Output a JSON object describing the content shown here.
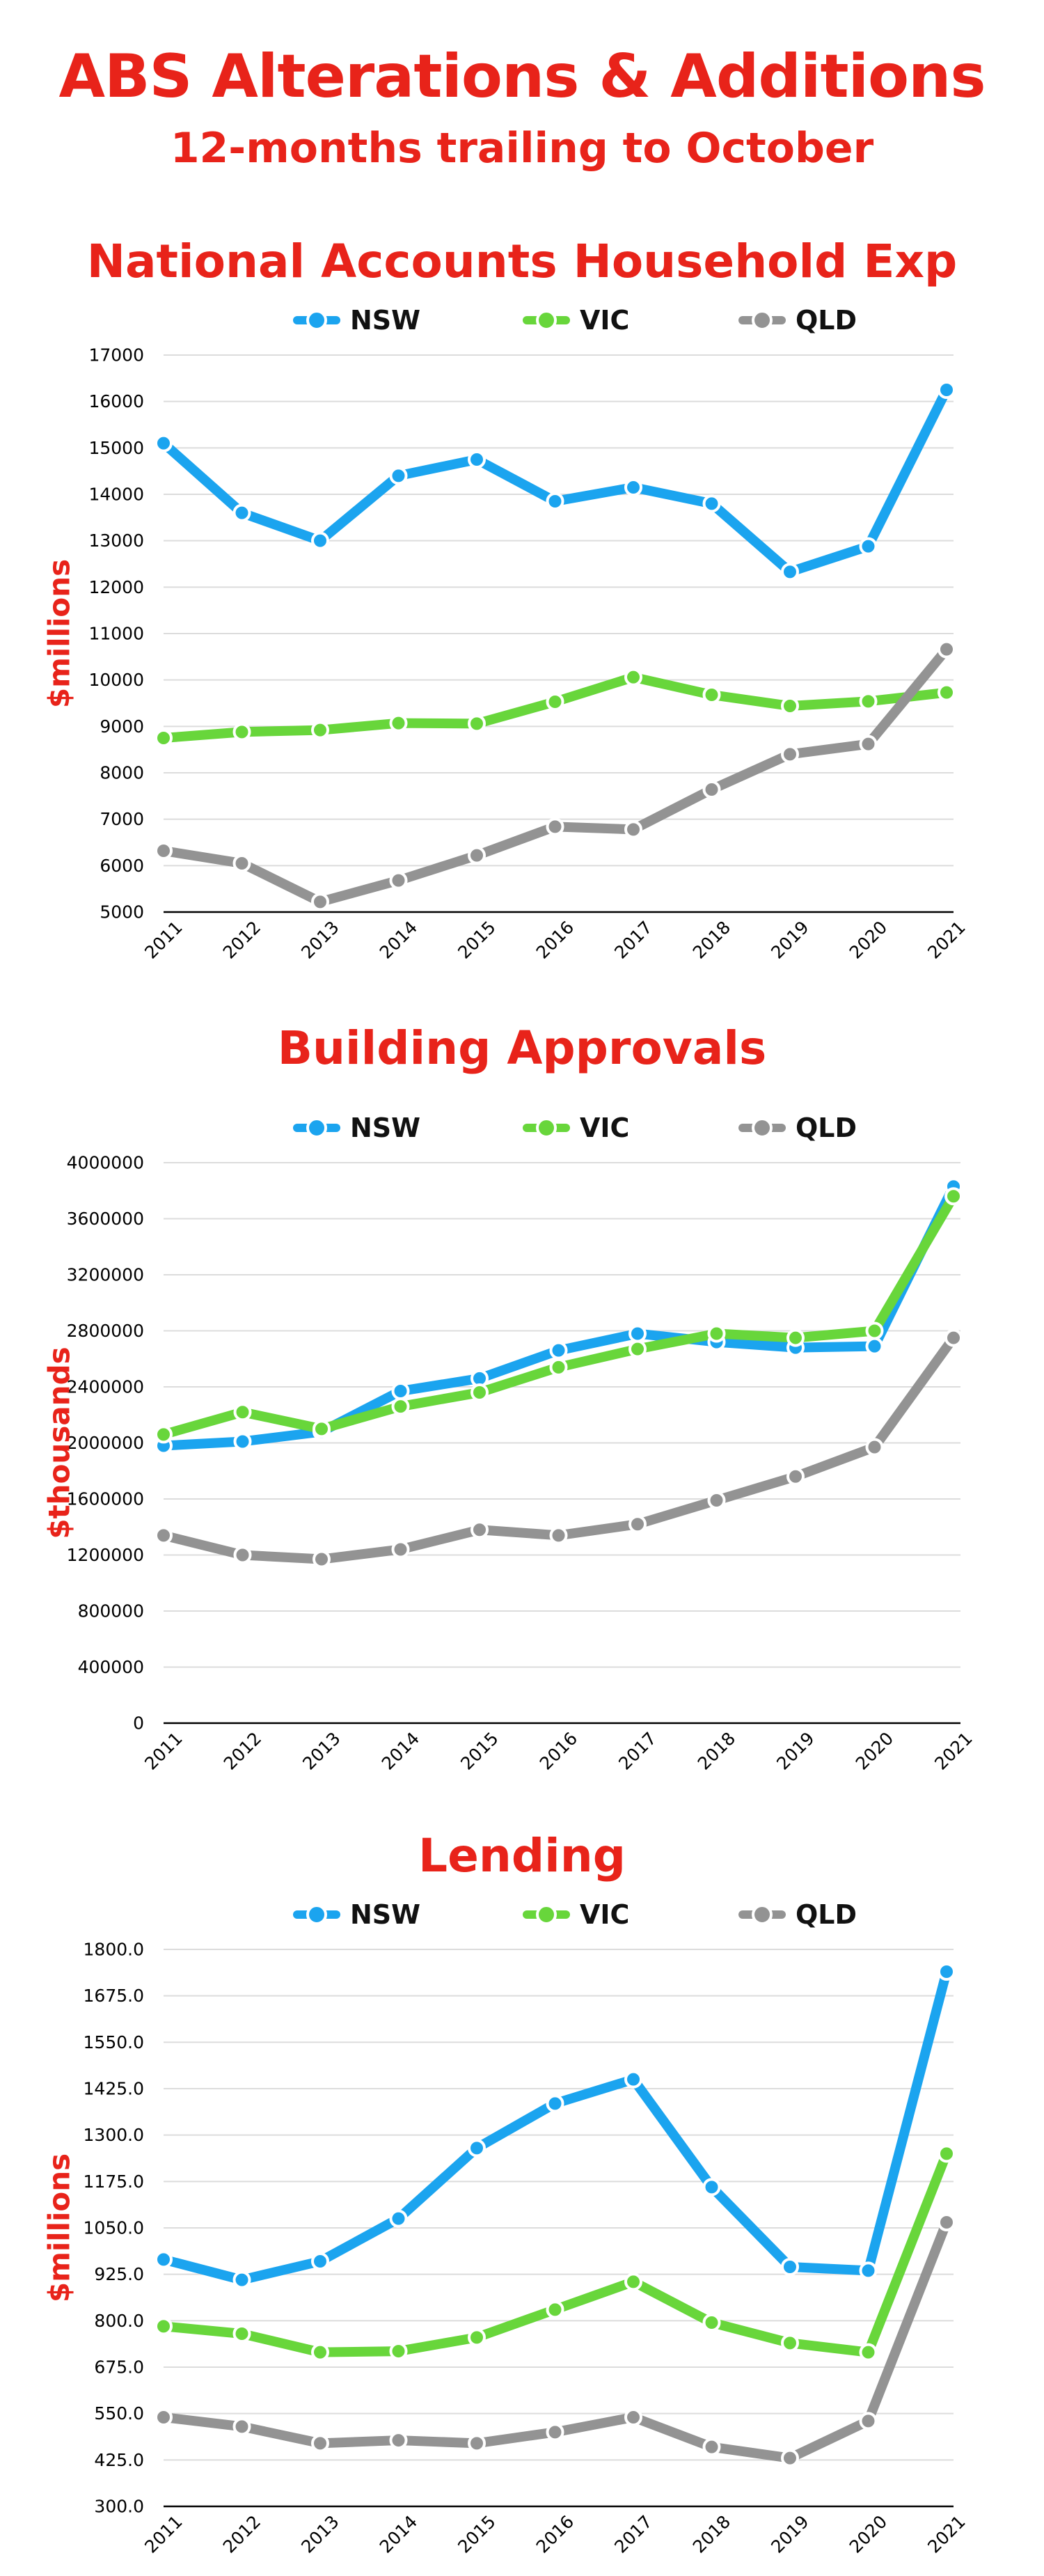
{
  "title": "ABS Alterations & Additions",
  "subtitle": "12-months trailing to October",
  "colors": {
    "NSW": "#1ba4ef",
    "VIC": "#68d63b",
    "QLD": "#939393",
    "accent": "#e8231a"
  },
  "chart_data": [
    {
      "type": "line",
      "title": "National Accounts Household Exp",
      "ylabel": "$millions",
      "xlabel": "",
      "ylim": [
        5000,
        17000
      ],
      "yticks": [
        "5000",
        "6000",
        "7000",
        "8000",
        "9000",
        "10000",
        "11000",
        "12000",
        "13000",
        "14000",
        "15000",
        "16000",
        "17000"
      ],
      "categories": [
        "2011",
        "2012",
        "2013",
        "2014",
        "2015",
        "2016",
        "2017",
        "2018",
        "2019",
        "2020",
        "2021"
      ],
      "legend": "top",
      "grid": true,
      "series": [
        {
          "name": "NSW",
          "values": [
            15100,
            13600,
            13000,
            14400,
            14750,
            13850,
            14150,
            13800,
            12330,
            12880,
            16250
          ]
        },
        {
          "name": "VIC",
          "values": [
            8750,
            8880,
            8920,
            9070,
            9060,
            9530,
            10060,
            9680,
            9440,
            9540,
            9730
          ]
        },
        {
          "name": "QLD",
          "values": [
            6320,
            6050,
            5220,
            5680,
            6220,
            6840,
            6780,
            7640,
            8400,
            8620,
            10660
          ]
        }
      ]
    },
    {
      "type": "line",
      "title": "Building Approvals",
      "ylabel": "$thousands",
      "xlabel": "",
      "ylim": [
        0,
        4000000
      ],
      "yticks": [
        "0",
        "400000",
        "800000",
        "1200000",
        "1600000",
        "2000000",
        "2400000",
        "2800000",
        "3200000",
        "3600000",
        "4000000"
      ],
      "categories": [
        "2011",
        "2012",
        "2013",
        "2014",
        "2015",
        "2016",
        "2017",
        "2018",
        "2019",
        "2020",
        "2021"
      ],
      "legend": "top",
      "grid": true,
      "series": [
        {
          "name": "NSW",
          "values": [
            1980000,
            2010000,
            2080000,
            2370000,
            2460000,
            2660000,
            2780000,
            2720000,
            2680000,
            2690000,
            3830000
          ]
        },
        {
          "name": "VIC",
          "values": [
            2060000,
            2220000,
            2100000,
            2260000,
            2360000,
            2540000,
            2670000,
            2780000,
            2750000,
            2800000,
            3760000
          ]
        },
        {
          "name": "QLD",
          "values": [
            1340000,
            1200000,
            1170000,
            1240000,
            1380000,
            1340000,
            1420000,
            1590000,
            1760000,
            1970000,
            2750000
          ]
        }
      ]
    },
    {
      "type": "line",
      "title": "Lending",
      "ylabel": "$millions",
      "xlabel": "",
      "ylim": [
        300,
        1800
      ],
      "yticks": [
        "300.0",
        "425.0",
        "550.0",
        "675.0",
        "800.0",
        "925.0",
        "1050.0",
        "1175.0",
        "1300.0",
        "1425.0",
        "1550.0",
        "1675.0",
        "1800.0"
      ],
      "categories": [
        "2011",
        "2012",
        "2013",
        "2014",
        "2015",
        "2016",
        "2017",
        "2018",
        "2019",
        "2020",
        "2021"
      ],
      "legend": "top",
      "grid": true,
      "series": [
        {
          "name": "NSW",
          "values": [
            965,
            910,
            960,
            1075,
            1265,
            1385,
            1450,
            1160,
            945,
            935,
            1740
          ]
        },
        {
          "name": "VIC",
          "values": [
            785,
            765,
            715,
            718,
            755,
            830,
            905,
            795,
            740,
            715,
            1250
          ]
        },
        {
          "name": "QLD",
          "values": [
            540,
            515,
            470,
            478,
            470,
            500,
            540,
            460,
            430,
            530,
            1065
          ]
        }
      ]
    }
  ]
}
